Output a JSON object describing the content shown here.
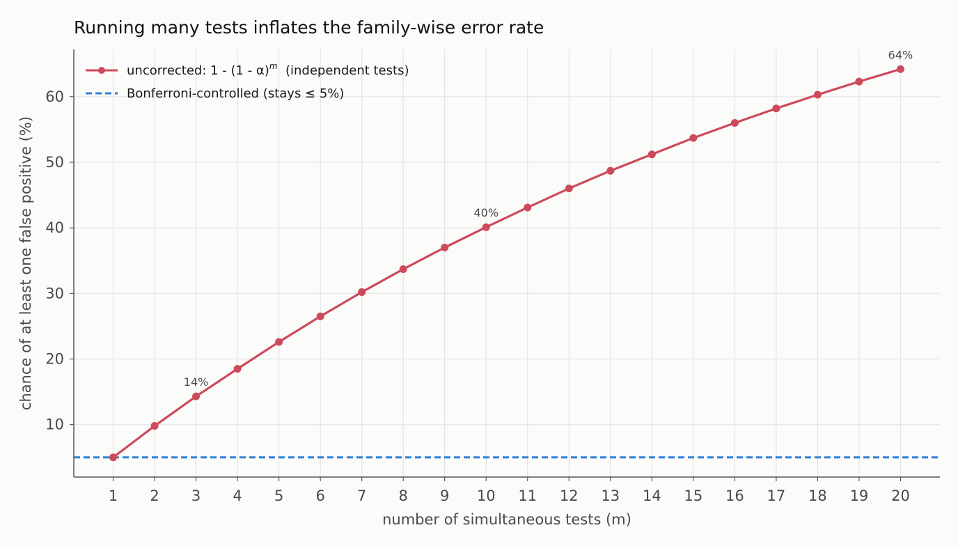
{
  "chart_data": {
    "type": "line",
    "title": "Running many tests inflates the family-wise error rate",
    "xlabel": "number of simultaneous tests (m)",
    "ylabel": "chance of at least one false positive (%)",
    "x": [
      1,
      2,
      3,
      4,
      5,
      6,
      7,
      8,
      9,
      10,
      11,
      12,
      13,
      14,
      15,
      16,
      17,
      18,
      19,
      20
    ],
    "xlim": [
      0.05,
      20.95
    ],
    "ylim": [
      2.0,
      67.2
    ],
    "yticks": [
      10,
      20,
      30,
      40,
      50,
      60
    ],
    "grid": true,
    "legend_position": "top-left",
    "series": [
      {
        "name": "uncorrected: 1 - (1 - α)",
        "name_sup": "m",
        "name_suffix": "  (independent tests)",
        "style": "line-with-markers",
        "color": "#cc4a5c",
        "values": [
          5.0,
          9.8,
          14.3,
          18.5,
          22.6,
          26.5,
          30.2,
          33.7,
          37.0,
          40.1,
          43.1,
          46.0,
          48.7,
          51.2,
          53.7,
          56.0,
          58.2,
          60.3,
          62.3,
          64.2
        ]
      },
      {
        "name": "Bonferroni-controlled (stays ≤ 5%)",
        "style": "dashed",
        "color": "#2f7fd6",
        "values": [
          5,
          5,
          5,
          5,
          5,
          5,
          5,
          5,
          5,
          5,
          5,
          5,
          5,
          5,
          5,
          5,
          5,
          5,
          5,
          5
        ]
      }
    ],
    "annotations": [
      {
        "x": 3,
        "y": 14.3,
        "text": "14%"
      },
      {
        "x": 10,
        "y": 40.1,
        "text": "40%"
      },
      {
        "x": 20,
        "y": 64.2,
        "text": "64%"
      }
    ]
  }
}
